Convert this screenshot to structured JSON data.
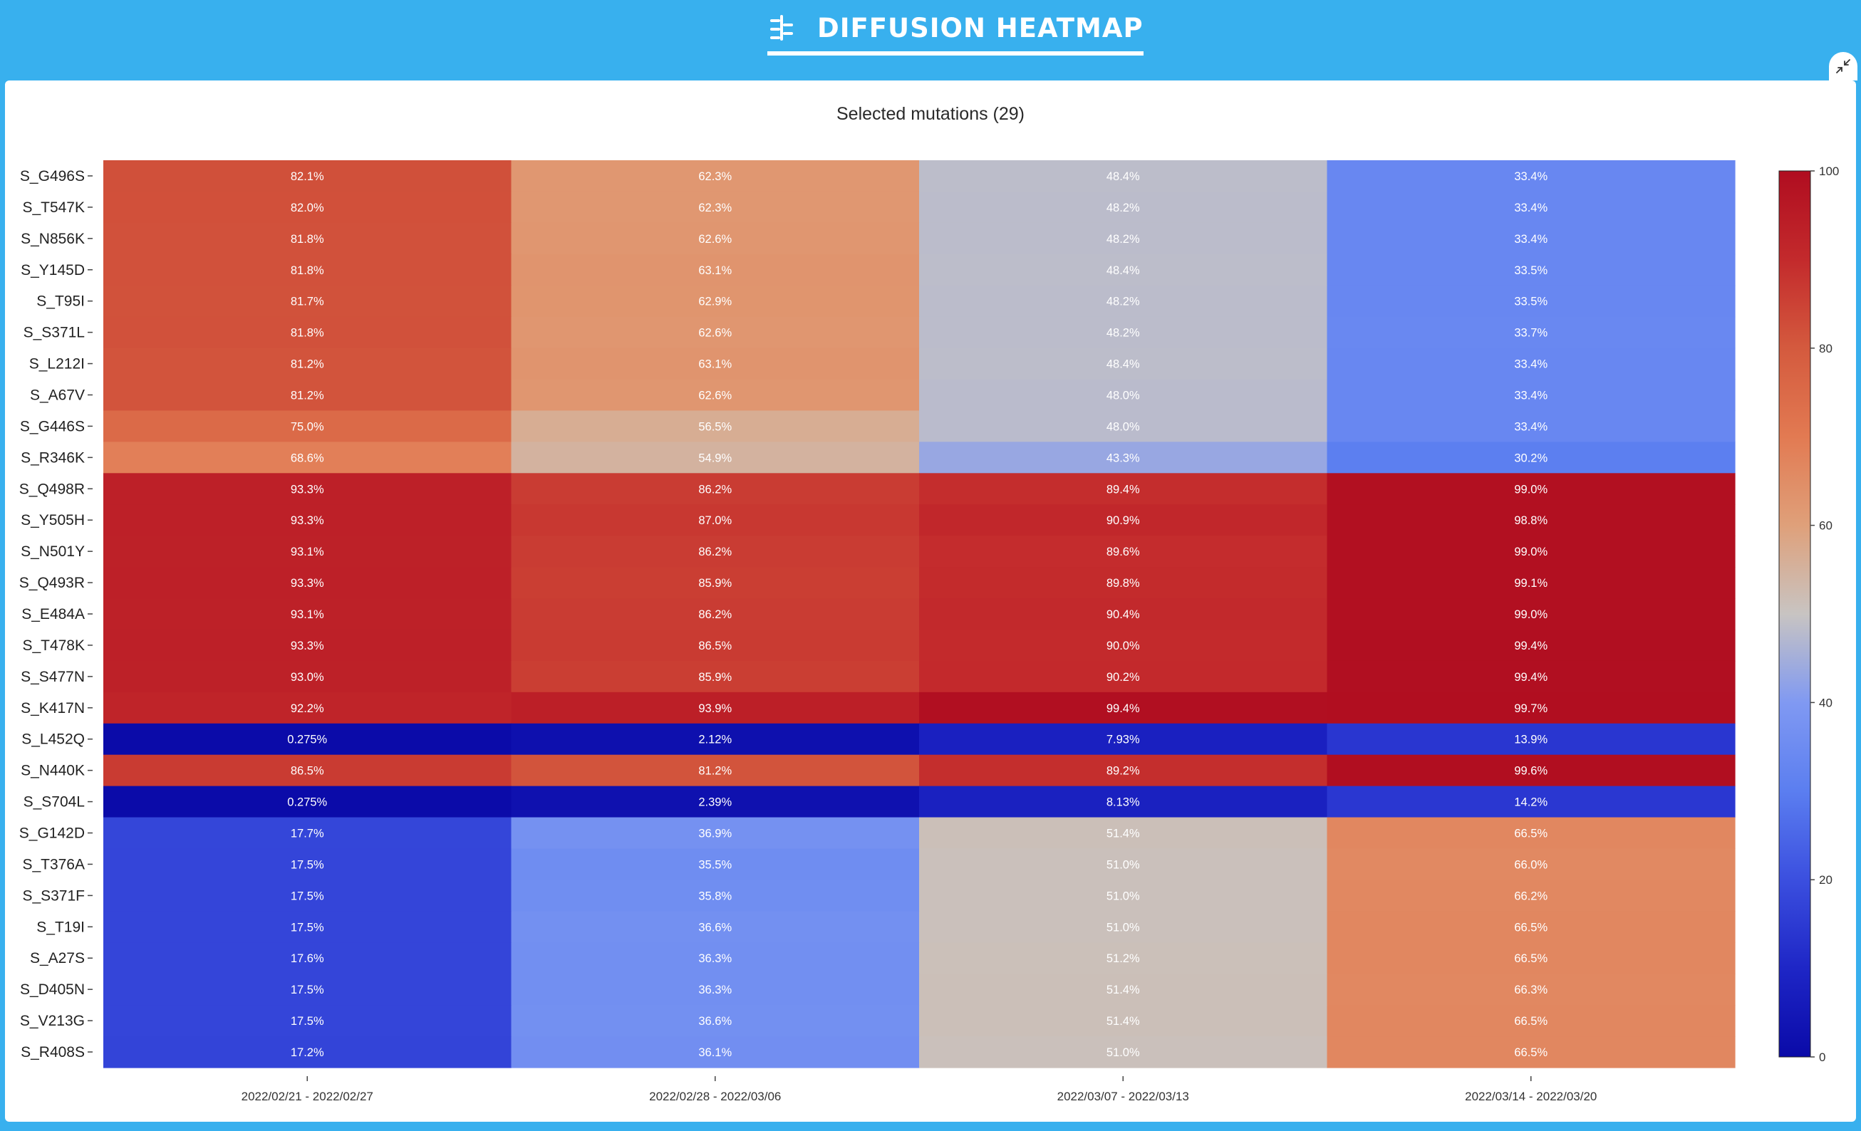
{
  "header": {
    "title": "DIFFUSION HEATMAP",
    "title_icon": "diffusion-icon",
    "collapse_icon": "collapse-arrows-icon"
  },
  "colors": {
    "background": "#38b0ee",
    "panel": "#ffffff",
    "low": "#0a0aa8",
    "mid": "#c8c4c2",
    "high": "#b00d20"
  },
  "chart_data": {
    "type": "heatmap",
    "title": "Selected mutations (29)",
    "xlabel": "",
    "ylabel": "",
    "x": [
      "2022/02/21 - 2022/02/27",
      "2022/02/28 - 2022/03/06",
      "2022/03/07 - 2022/03/13",
      "2022/03/14 - 2022/03/20"
    ],
    "y": [
      "S_G496S",
      "S_T547K",
      "S_N856K",
      "S_Y145D",
      "S_T95I",
      "S_S371L",
      "S_L212I",
      "S_A67V",
      "S_G446S",
      "S_R346K",
      "S_Q498R",
      "S_Y505H",
      "S_N501Y",
      "S_Q493R",
      "S_E484A",
      "S_T478K",
      "S_S477N",
      "S_K417N",
      "S_L452Q",
      "S_N440K",
      "S_S704L",
      "S_G142D",
      "S_T376A",
      "S_S371F",
      "S_T19I",
      "S_A27S",
      "S_D405N",
      "S_V213G",
      "S_R408S"
    ],
    "values": [
      [
        82.1,
        62.3,
        48.4,
        33.4
      ],
      [
        82.0,
        62.3,
        48.2,
        33.4
      ],
      [
        81.8,
        62.6,
        48.2,
        33.4
      ],
      [
        81.8,
        63.1,
        48.4,
        33.5
      ],
      [
        81.7,
        62.9,
        48.2,
        33.5
      ],
      [
        81.8,
        62.6,
        48.2,
        33.7
      ],
      [
        81.2,
        63.1,
        48.4,
        33.4
      ],
      [
        81.2,
        62.6,
        48.0,
        33.4
      ],
      [
        75.0,
        56.5,
        48.0,
        33.4
      ],
      [
        68.6,
        54.9,
        43.3,
        30.2
      ],
      [
        93.3,
        86.2,
        89.4,
        99.0
      ],
      [
        93.3,
        87.0,
        90.9,
        98.8
      ],
      [
        93.1,
        86.2,
        89.6,
        99.0
      ],
      [
        93.3,
        85.9,
        89.8,
        99.1
      ],
      [
        93.1,
        86.2,
        90.4,
        99.0
      ],
      [
        93.3,
        86.5,
        90.0,
        99.4
      ],
      [
        93.0,
        85.9,
        90.2,
        99.4
      ],
      [
        92.2,
        93.9,
        99.4,
        99.7
      ],
      [
        0.275,
        2.12,
        7.93,
        13.9
      ],
      [
        86.5,
        81.2,
        89.2,
        99.6
      ],
      [
        0.275,
        2.39,
        8.13,
        14.2
      ],
      [
        17.7,
        36.9,
        51.4,
        66.5
      ],
      [
        17.5,
        35.5,
        51.0,
        66.0
      ],
      [
        17.5,
        35.8,
        51.0,
        66.2
      ],
      [
        17.5,
        36.6,
        51.0,
        66.5
      ],
      [
        17.6,
        36.3,
        51.2,
        66.5
      ],
      [
        17.5,
        36.3,
        51.4,
        66.3
      ],
      [
        17.5,
        36.6,
        51.4,
        66.5
      ],
      [
        17.2,
        36.1,
        51.0,
        66.5
      ]
    ],
    "labels": [
      [
        "82.1%",
        "62.3%",
        "48.4%",
        "33.4%"
      ],
      [
        "82.0%",
        "62.3%",
        "48.2%",
        "33.4%"
      ],
      [
        "81.8%",
        "62.6%",
        "48.2%",
        "33.4%"
      ],
      [
        "81.8%",
        "63.1%",
        "48.4%",
        "33.5%"
      ],
      [
        "81.7%",
        "62.9%",
        "48.2%",
        "33.5%"
      ],
      [
        "81.8%",
        "62.6%",
        "48.2%",
        "33.7%"
      ],
      [
        "81.2%",
        "63.1%",
        "48.4%",
        "33.4%"
      ],
      [
        "81.2%",
        "62.6%",
        "48.0%",
        "33.4%"
      ],
      [
        "75.0%",
        "56.5%",
        "48.0%",
        "33.4%"
      ],
      [
        "68.6%",
        "54.9%",
        "43.3%",
        "30.2%"
      ],
      [
        "93.3%",
        "86.2%",
        "89.4%",
        "99.0%"
      ],
      [
        "93.3%",
        "87.0%",
        "90.9%",
        "98.8%"
      ],
      [
        "93.1%",
        "86.2%",
        "89.6%",
        "99.0%"
      ],
      [
        "93.3%",
        "85.9%",
        "89.8%",
        "99.1%"
      ],
      [
        "93.1%",
        "86.2%",
        "90.4%",
        "99.0%"
      ],
      [
        "93.3%",
        "86.5%",
        "90.0%",
        "99.4%"
      ],
      [
        "93.0%",
        "85.9%",
        "90.2%",
        "99.4%"
      ],
      [
        "92.2%",
        "93.9%",
        "99.4%",
        "99.7%"
      ],
      [
        "0.275%",
        "2.12%",
        "7.93%",
        "13.9%"
      ],
      [
        "86.5%",
        "81.2%",
        "89.2%",
        "99.6%"
      ],
      [
        "0.275%",
        "2.39%",
        "8.13%",
        "14.2%"
      ],
      [
        "17.7%",
        "36.9%",
        "51.4%",
        "66.5%"
      ],
      [
        "17.5%",
        "35.5%",
        "51.0%",
        "66.0%"
      ],
      [
        "17.5%",
        "35.8%",
        "51.0%",
        "66.2%"
      ],
      [
        "17.5%",
        "36.6%",
        "51.0%",
        "66.5%"
      ],
      [
        "17.6%",
        "36.3%",
        "51.2%",
        "66.5%"
      ],
      [
        "17.5%",
        "36.3%",
        "51.4%",
        "66.3%"
      ],
      [
        "17.5%",
        "36.6%",
        "51.4%",
        "66.5%"
      ],
      [
        "17.2%",
        "36.1%",
        "51.0%",
        "66.5%"
      ]
    ],
    "colorscale": "coolwarm",
    "zlim": [
      0,
      100
    ],
    "colorbar_ticks": [
      0,
      20,
      40,
      60,
      80,
      100
    ],
    "legend_position": "right",
    "grid": false
  }
}
